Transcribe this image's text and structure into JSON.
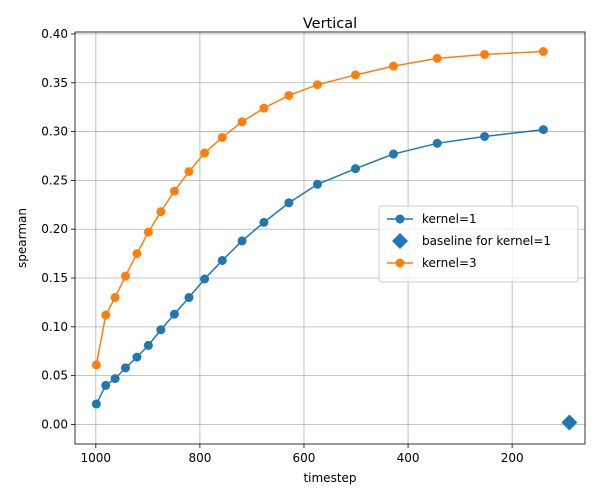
{
  "chart_data": {
    "type": "line",
    "title": "Vertical",
    "xlabel": "timestep",
    "ylabel": "spearman",
    "xlim": [
      1040,
      60
    ],
    "ylim": [
      -0.02,
      0.402
    ],
    "x_inverted": true,
    "xticks": [
      1000,
      800,
      600,
      400,
      200
    ],
    "xtick_labels": [
      "1000",
      "800",
      "600",
      "400",
      "200"
    ],
    "yticks": [
      0.0,
      0.05,
      0.1,
      0.15,
      0.2,
      0.25,
      0.3,
      0.35,
      0.4
    ],
    "ytick_labels": [
      "0.00",
      "0.05",
      "0.10",
      "0.15",
      "0.20",
      "0.25",
      "0.30",
      "0.35",
      "0.40"
    ],
    "grid": true,
    "legend_position": "center-right",
    "series": [
      {
        "name": "kernel=1",
        "color": "#1f77b4",
        "marker": "circle",
        "line": true,
        "x": [
          999,
          981,
          963,
          943,
          921,
          899,
          875,
          849,
          821,
          791,
          757,
          719,
          677,
          629,
          574,
          501,
          428,
          344,
          253,
          140
        ],
        "y": [
          0.021,
          0.04,
          0.047,
          0.058,
          0.069,
          0.081,
          0.097,
          0.113,
          0.13,
          0.149,
          0.168,
          0.188,
          0.207,
          0.227,
          0.246,
          0.262,
          0.277,
          0.288,
          0.295,
          0.302
        ]
      },
      {
        "name": "baseline for kernel=1",
        "color": "#1f77b4",
        "marker": "diamond",
        "line": false,
        "x": [
          90
        ],
        "y": [
          0.002
        ]
      },
      {
        "name": "kernel=3",
        "color": "#ff7f0e",
        "marker": "circle",
        "line": true,
        "x": [
          999,
          981,
          963,
          943,
          921,
          899,
          875,
          849,
          821,
          791,
          757,
          719,
          677,
          629,
          574,
          501,
          428,
          344,
          253,
          140
        ],
        "y": [
          0.061,
          0.112,
          0.13,
          0.152,
          0.175,
          0.197,
          0.218,
          0.239,
          0.259,
          0.278,
          0.294,
          0.31,
          0.324,
          0.337,
          0.348,
          0.358,
          0.367,
          0.375,
          0.379,
          0.382
        ]
      }
    ]
  }
}
